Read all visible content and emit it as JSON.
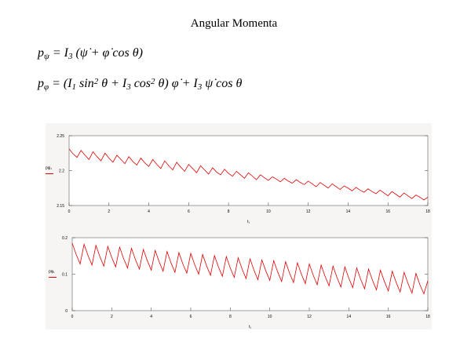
{
  "title": "Angular Momenta",
  "equations": [
    [
      {
        "text": "p",
        "pos": "base"
      },
      {
        "text": "ψ",
        "pos": "sub"
      },
      {
        "text": " = I",
        "pos": "base"
      },
      {
        "text": "3",
        "pos": "sub"
      },
      {
        "text": " (ψ̇ + φ̇ cos θ)",
        "pos": "base"
      }
    ],
    [
      {
        "text": "p",
        "pos": "base"
      },
      {
        "text": "φ",
        "pos": "sub"
      },
      {
        "text": " = (I",
        "pos": "base"
      },
      {
        "text": "1",
        "pos": "sub"
      },
      {
        "text": " sin",
        "pos": "base"
      },
      {
        "text": "2",
        "pos": "sup"
      },
      {
        "text": " θ + I",
        "pos": "base"
      },
      {
        "text": "3",
        "pos": "sub"
      },
      {
        "text": " cos",
        "pos": "base"
      },
      {
        "text": "2",
        "pos": "sup"
      },
      {
        "text": " θ) φ̇ + I",
        "pos": "base"
      },
      {
        "text": "3",
        "pos": "sub"
      },
      {
        "text": " ψ̇ cos θ",
        "pos": "base"
      }
    ]
  ],
  "chart_data": [
    {
      "type": "line",
      "ylabel": "pψ₁",
      "xlabel": "t₁",
      "color": "#e00000",
      "xlim": [
        0,
        18
      ],
      "xticks": [
        0,
        2,
        4,
        6,
        8,
        10,
        12,
        14,
        16,
        18
      ],
      "ylim": [
        2.15,
        2.25
      ],
      "yticks": [
        2.15,
        2.2,
        2.25
      ],
      "x": [
        0,
        0.2,
        0.4,
        0.6,
        0.8,
        1,
        1.2,
        1.4,
        1.6,
        1.8,
        2,
        2.2,
        2.4,
        2.6,
        2.8,
        3,
        3.2,
        3.4,
        3.6,
        3.8,
        4,
        4.2,
        4.4,
        4.6,
        4.8,
        5,
        5.2,
        5.4,
        5.6,
        5.8,
        6,
        6.2,
        6.4,
        6.6,
        6.8,
        7,
        7.2,
        7.4,
        7.6,
        7.8,
        8,
        8.2,
        8.4,
        8.6,
        8.8,
        9,
        9.2,
        9.4,
        9.6,
        9.8,
        10,
        10.2,
        10.4,
        10.6,
        10.8,
        11,
        11.2,
        11.4,
        11.6,
        11.8,
        12,
        12.2,
        12.4,
        12.6,
        12.8,
        13,
        13.2,
        13.4,
        13.6,
        13.8,
        14,
        14.2,
        14.4,
        14.6,
        14.8,
        15,
        15.2,
        15.4,
        15.6,
        15.8,
        16,
        16.2,
        16.4,
        16.6,
        16.8,
        17,
        17.2,
        17.4,
        17.6,
        17.8,
        18
      ],
      "values": [
        2.231,
        2.224,
        2.219,
        2.229,
        2.222,
        2.216,
        2.227,
        2.22,
        2.214,
        2.225,
        2.218,
        2.212,
        2.222,
        2.216,
        2.21,
        2.22,
        2.213,
        2.208,
        2.218,
        2.211,
        2.206,
        2.216,
        2.209,
        2.203,
        2.214,
        2.207,
        2.201,
        2.212,
        2.205,
        2.199,
        2.209,
        2.203,
        2.197,
        2.207,
        2.201,
        2.195,
        2.204,
        2.198,
        2.194,
        2.202,
        2.196,
        2.192,
        2.199,
        2.194,
        2.189,
        2.197,
        2.192,
        2.187,
        2.194,
        2.19,
        2.186,
        2.191,
        2.188,
        2.184,
        2.189,
        2.185,
        2.182,
        2.187,
        2.183,
        2.18,
        2.185,
        2.181,
        2.177,
        2.183,
        2.179,
        2.175,
        2.181,
        2.177,
        2.173,
        2.178,
        2.175,
        2.171,
        2.176,
        2.172,
        2.169,
        2.174,
        2.17,
        2.167,
        2.172,
        2.168,
        2.164,
        2.17,
        2.166,
        2.162,
        2.168,
        2.164,
        2.16,
        2.165,
        2.162,
        2.158,
        2.162
      ]
    },
    {
      "type": "line",
      "ylabel": "pφ₁",
      "xlabel": "t₁",
      "color": "#e00000",
      "xlim": [
        0,
        18
      ],
      "xticks": [
        0,
        2,
        4,
        6,
        8,
        10,
        12,
        14,
        16,
        18
      ],
      "ylim": [
        0,
        0.2
      ],
      "yticks": [
        0,
        0.1,
        0.2
      ],
      "x": [
        0,
        0.2,
        0.4,
        0.6,
        0.8,
        1,
        1.2,
        1.4,
        1.6,
        1.8,
        2,
        2.2,
        2.4,
        2.6,
        2.8,
        3,
        3.2,
        3.4,
        3.6,
        3.8,
        4,
        4.2,
        4.4,
        4.6,
        4.8,
        5,
        5.2,
        5.4,
        5.6,
        5.8,
        6,
        6.2,
        6.4,
        6.6,
        6.8,
        7,
        7.2,
        7.4,
        7.6,
        7.8,
        8,
        8.2,
        8.4,
        8.6,
        8.8,
        9,
        9.2,
        9.4,
        9.6,
        9.8,
        10,
        10.2,
        10.4,
        10.6,
        10.8,
        11,
        11.2,
        11.4,
        11.6,
        11.8,
        12,
        12.2,
        12.4,
        12.6,
        12.8,
        13,
        13.2,
        13.4,
        13.6,
        13.8,
        14,
        14.2,
        14.4,
        14.6,
        14.8,
        15,
        15.2,
        15.4,
        15.6,
        15.8,
        16,
        16.2,
        16.4,
        16.6,
        16.8,
        17,
        17.2,
        17.4,
        17.6,
        17.8,
        18
      ],
      "values": [
        0.185,
        0.154,
        0.128,
        0.182,
        0.151,
        0.125,
        0.179,
        0.148,
        0.122,
        0.176,
        0.146,
        0.12,
        0.174,
        0.143,
        0.117,
        0.171,
        0.14,
        0.114,
        0.168,
        0.137,
        0.111,
        0.165,
        0.134,
        0.108,
        0.162,
        0.131,
        0.105,
        0.159,
        0.128,
        0.103,
        0.157,
        0.126,
        0.1,
        0.154,
        0.123,
        0.097,
        0.151,
        0.12,
        0.094,
        0.148,
        0.117,
        0.091,
        0.145,
        0.114,
        0.088,
        0.142,
        0.111,
        0.085,
        0.139,
        0.109,
        0.083,
        0.137,
        0.106,
        0.08,
        0.134,
        0.103,
        0.077,
        0.131,
        0.1,
        0.074,
        0.128,
        0.097,
        0.071,
        0.125,
        0.094,
        0.068,
        0.122,
        0.091,
        0.065,
        0.12,
        0.089,
        0.063,
        0.117,
        0.086,
        0.06,
        0.114,
        0.083,
        0.057,
        0.111,
        0.08,
        0.054,
        0.108,
        0.077,
        0.051,
        0.105,
        0.074,
        0.048,
        0.102,
        0.071,
        0.046,
        0.082
      ]
    }
  ]
}
